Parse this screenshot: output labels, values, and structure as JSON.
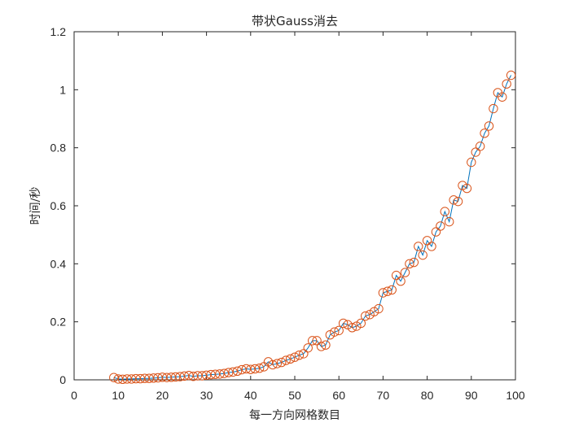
{
  "chart_data": {
    "type": "line",
    "title": "带状Gauss消去",
    "xlabel": "每一方向网格数目",
    "ylabel": "时间/秒",
    "xlim": [
      0,
      100
    ],
    "ylim": [
      0,
      1.2
    ],
    "xticks": [
      0,
      10,
      20,
      30,
      40,
      50,
      60,
      70,
      80,
      90,
      100
    ],
    "yticks": [
      0,
      0.2,
      0.4,
      0.6,
      0.8,
      1,
      1.2
    ],
    "xtick_labels": [
      "0",
      "10",
      "20",
      "30",
      "40",
      "50",
      "60",
      "70",
      "80",
      "90",
      "100"
    ],
    "ytick_labels": [
      "0",
      "0.2",
      "0.4",
      "0.6",
      "0.8",
      "1",
      "1.2"
    ],
    "grid": false,
    "legend": "none",
    "series": [
      {
        "line_color": "#0072BD",
        "marker_color": "#D95319",
        "marker": "circle",
        "x": [
          9,
          10,
          11,
          12,
          13,
          14,
          15,
          16,
          17,
          18,
          19,
          20,
          21,
          22,
          23,
          24,
          25,
          26,
          27,
          28,
          29,
          30,
          31,
          32,
          33,
          34,
          35,
          36,
          37,
          38,
          39,
          40,
          41,
          42,
          43,
          44,
          45,
          46,
          47,
          48,
          49,
          50,
          51,
          52,
          53,
          54,
          55,
          56,
          57,
          58,
          59,
          60,
          61,
          62,
          63,
          64,
          65,
          66,
          67,
          68,
          69,
          70,
          71,
          72,
          73,
          74,
          75,
          76,
          77,
          78,
          79,
          80,
          81,
          82,
          83,
          84,
          85,
          86,
          87,
          88,
          89,
          90,
          91,
          92,
          93,
          94,
          95,
          96,
          97,
          98,
          99
        ],
        "values": [
          0.008,
          0.003,
          0.002,
          0.003,
          0.003,
          0.004,
          0.004,
          0.005,
          0.005,
          0.006,
          0.007,
          0.009,
          0.008,
          0.009,
          0.01,
          0.011,
          0.013,
          0.015,
          0.012,
          0.014,
          0.014,
          0.016,
          0.018,
          0.019,
          0.02,
          0.022,
          0.025,
          0.027,
          0.03,
          0.035,
          0.038,
          0.036,
          0.038,
          0.04,
          0.045,
          0.062,
          0.052,
          0.056,
          0.06,
          0.067,
          0.072,
          0.078,
          0.085,
          0.09,
          0.11,
          0.135,
          0.135,
          0.115,
          0.12,
          0.155,
          0.165,
          0.17,
          0.195,
          0.19,
          0.18,
          0.185,
          0.195,
          0.22,
          0.225,
          0.235,
          0.245,
          0.3,
          0.305,
          0.31,
          0.36,
          0.34,
          0.37,
          0.4,
          0.405,
          0.46,
          0.43,
          0.48,
          0.46,
          0.51,
          0.53,
          0.58,
          0.545,
          0.62,
          0.615,
          0.67,
          0.66,
          0.75,
          0.785,
          0.805,
          0.85,
          0.875,
          0.935,
          0.99,
          0.975,
          1.02,
          1.05
        ]
      }
    ]
  }
}
